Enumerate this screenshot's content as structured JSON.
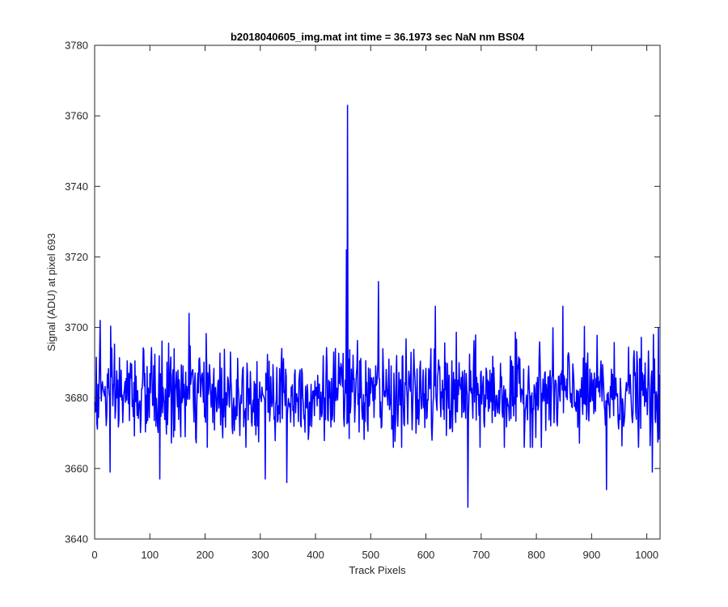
{
  "chart_data": {
    "type": "line",
    "title": "b2018040605_img.mat int time = 36.1973 sec  NaN nm BS04",
    "xlabel": "Track Pixels",
    "ylabel": "Signal (ADU) at pixel 693",
    "xlim": [
      0,
      1024
    ],
    "ylim": [
      3640,
      3780
    ],
    "xticks": [
      0,
      100,
      200,
      300,
      400,
      500,
      600,
      700,
      800,
      900,
      1000
    ],
    "yticks": [
      3640,
      3660,
      3680,
      3700,
      3720,
      3740,
      3760,
      3780
    ],
    "grid": false,
    "line_color": "#0000ff",
    "series": [
      {
        "baseline": 3681,
        "noise_amplitude": 8,
        "n_points": 1024,
        "features": [
          {
            "x": 10,
            "y": 3702
          },
          {
            "x": 28,
            "y": 3659
          },
          {
            "x": 118,
            "y": 3657
          },
          {
            "x": 171,
            "y": 3704
          },
          {
            "x": 309,
            "y": 3657
          },
          {
            "x": 348,
            "y": 3656
          },
          {
            "x": 456,
            "y": 3722
          },
          {
            "x": 458,
            "y": 3763
          },
          {
            "x": 514,
            "y": 3713
          },
          {
            "x": 617,
            "y": 3706
          },
          {
            "x": 676,
            "y": 3649
          },
          {
            "x": 848,
            "y": 3706
          },
          {
            "x": 927,
            "y": 3654
          },
          {
            "x": 1010,
            "y": 3659
          },
          {
            "x": 1021,
            "y": 3700
          }
        ]
      }
    ]
  }
}
